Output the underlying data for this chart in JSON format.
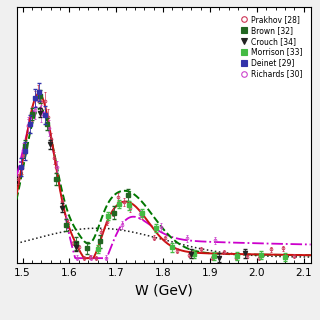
{
  "xlabel": "W (GeV)",
  "xmin": 1.487,
  "xmax": 2.115,
  "ymin": -0.5,
  "ymax": 28.0,
  "xticks": [
    1.5,
    1.6,
    1.7,
    1.8,
    1.9,
    2.0,
    2.1
  ],
  "bg_color": "#ffffff",
  "fig_color": "#f0f0f0",
  "legend_entries": [
    {
      "label": "Prakhov [28]",
      "color": "#cc3355",
      "marker": "o",
      "filled": false
    },
    {
      "label": "Brown [32]",
      "color": "#226622",
      "marker": "s",
      "filled": true
    },
    {
      "label": "Crouch [34]",
      "color": "#222222",
      "marker": "v",
      "filled": true
    },
    {
      "label": "Morrison [33]",
      "color": "#44bb44",
      "marker": "s",
      "filled": true
    },
    {
      "label": "Deinet [29]",
      "color": "#3333aa",
      "marker": "s",
      "filled": true
    },
    {
      "label": "Richards [30]",
      "color": "#cc44cc",
      "marker": "o",
      "filled": false
    }
  ]
}
